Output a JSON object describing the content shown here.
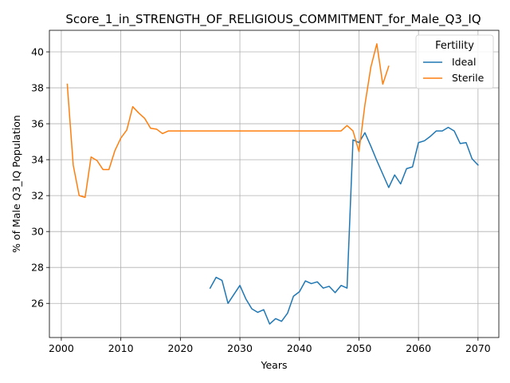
{
  "chart_data": {
    "type": "line",
    "title": "Score_1_in_STRENGTH_OF_RELIGIOUS_COMMITMENT_for_Male_Q3_IQ",
    "xlabel": "Years",
    "ylabel": "% of Male Q3_IQ Population",
    "xlim": [
      1998,
      2073.5
    ],
    "ylim": [
      24.1,
      41.2
    ],
    "xticks": [
      2000,
      2010,
      2020,
      2030,
      2040,
      2050,
      2060,
      2070
    ],
    "yticks": [
      26,
      28,
      30,
      32,
      34,
      36,
      38,
      40
    ],
    "grid": true,
    "legend": {
      "title": "Fertility",
      "placement": "top-right"
    },
    "series": [
      {
        "name": "Ideal",
        "color": "#1f77b4",
        "x": [
          2025,
          2026,
          2027,
          2028,
          2029,
          2030,
          2031,
          2032,
          2033,
          2034,
          2035,
          2036,
          2037,
          2038,
          2039,
          2040,
          2041,
          2042,
          2043,
          2044,
          2045,
          2046,
          2047,
          2048,
          2049,
          2050,
          2051,
          2052,
          2053,
          2054,
          2055,
          2056,
          2057,
          2058,
          2059,
          2060,
          2061,
          2062,
          2063,
          2064,
          2065,
          2066,
          2067,
          2068,
          2069,
          2070
        ],
        "y": [
          26.85,
          27.45,
          27.28,
          26.0,
          26.5,
          27.0,
          26.25,
          25.7,
          25.5,
          25.65,
          24.85,
          25.15,
          25.0,
          25.45,
          26.4,
          26.65,
          27.25,
          27.1,
          27.2,
          26.85,
          26.95,
          26.6,
          27.0,
          26.85,
          35.1,
          34.95,
          35.5,
          34.75,
          33.95,
          33.2,
          32.45,
          33.15,
          32.65,
          33.5,
          33.6,
          34.95,
          35.05,
          35.3,
          35.6,
          35.6,
          35.8,
          35.6,
          34.9,
          34.95,
          34.05,
          33.7
        ]
      },
      {
        "name": "Sterile",
        "color": "#ff7f0e",
        "x": [
          2001,
          2002,
          2003,
          2004,
          2005,
          2006,
          2007,
          2008,
          2009,
          2010,
          2011,
          2012,
          2013,
          2014,
          2015,
          2016,
          2017,
          2018,
          2019,
          2020,
          2021,
          2022,
          2023,
          2024,
          2025,
          2026,
          2027,
          2028,
          2029,
          2030,
          2031,
          2032,
          2033,
          2034,
          2035,
          2036,
          2037,
          2038,
          2039,
          2040,
          2041,
          2042,
          2043,
          2044,
          2045,
          2046,
          2047,
          2048,
          2049,
          2050,
          2051,
          2052,
          2053,
          2054,
          2055
        ],
        "y": [
          38.2,
          33.7,
          32.0,
          31.9,
          34.15,
          33.95,
          33.45,
          33.45,
          34.5,
          35.2,
          35.65,
          36.95,
          36.6,
          36.3,
          35.75,
          35.7,
          35.45,
          35.6,
          35.6,
          35.6,
          35.6,
          35.6,
          35.6,
          35.6,
          35.6,
          35.6,
          35.6,
          35.6,
          35.6,
          35.6,
          35.6,
          35.6,
          35.6,
          35.6,
          35.6,
          35.6,
          35.6,
          35.6,
          35.6,
          35.6,
          35.6,
          35.6,
          35.6,
          35.6,
          35.6,
          35.6,
          35.6,
          35.9,
          35.6,
          34.45,
          37.05,
          39.15,
          40.45,
          38.2,
          39.2
        ]
      }
    ]
  }
}
